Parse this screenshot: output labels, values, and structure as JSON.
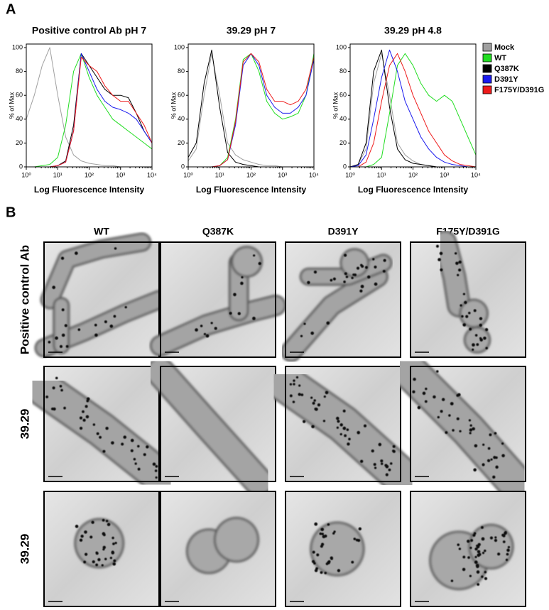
{
  "panel_a": {
    "label": "A"
  },
  "chart_data": [
    {
      "type": "line",
      "title": "Positive control Ab pH 7",
      "xlabel": "Log Fluorescence Intensity",
      "ylabel": "% of Max",
      "log_x": true,
      "xlim": [
        1,
        10000
      ],
      "ylim": [
        0,
        103
      ],
      "xticks": [
        {
          "value": 1,
          "label": "10⁰"
        },
        {
          "value": 10,
          "label": "10¹"
        },
        {
          "value": 100,
          "label": "10²"
        },
        {
          "value": 1000,
          "label": "10³"
        },
        {
          "value": 10000,
          "label": "10⁴"
        }
      ],
      "yticks": [
        0,
        20,
        40,
        60,
        80,
        100
      ],
      "x": [
        1,
        1.8,
        3.2,
        5.6,
        10,
        18,
        32,
        56,
        100,
        178,
        316,
        562,
        1000,
        1778,
        3162,
        5623,
        10000
      ],
      "series": [
        {
          "color": "#a0a0a0",
          "values": [
            40,
            60,
            85,
            100,
            60,
            25,
            10,
            5,
            3,
            2,
            1,
            1,
            0,
            0,
            0,
            0,
            0
          ]
        },
        {
          "color": "#22dd22",
          "values": [
            0,
            0,
            1,
            2,
            8,
            35,
            80,
            95,
            75,
            60,
            50,
            40,
            35,
            30,
            25,
            20,
            15
          ]
        },
        {
          "color": "#000000",
          "values": [
            0,
            0,
            0,
            0,
            1,
            5,
            35,
            95,
            85,
            75,
            65,
            60,
            60,
            58,
            45,
            30,
            20
          ]
        },
        {
          "color": "#1a1aee",
          "values": [
            0,
            0,
            0,
            0,
            1,
            4,
            30,
            95,
            80,
            65,
            55,
            50,
            48,
            45,
            40,
            30,
            20
          ]
        },
        {
          "color": "#ee1a1a",
          "values": [
            0,
            0,
            0,
            0,
            1,
            4,
            30,
            92,
            85,
            80,
            68,
            60,
            55,
            55,
            45,
            35,
            20
          ]
        }
      ]
    },
    {
      "type": "line",
      "title": "39.29 pH 7",
      "xlabel": "Log Fluorescence Intensity",
      "ylabel": "% of Max",
      "log_x": true,
      "xlim": [
        1,
        10000
      ],
      "ylim": [
        0,
        103
      ],
      "xticks": [
        {
          "value": 1,
          "label": "10⁰"
        },
        {
          "value": 10,
          "label": "10¹"
        },
        {
          "value": 100,
          "label": "10²"
        },
        {
          "value": 1000,
          "label": "10³"
        },
        {
          "value": 10000,
          "label": "10⁴"
        }
      ],
      "yticks": [
        0,
        20,
        40,
        60,
        80,
        100
      ],
      "x": [
        1,
        1.8,
        3.2,
        5.6,
        10,
        18,
        32,
        56,
        100,
        178,
        316,
        562,
        1000,
        1778,
        3162,
        5623,
        10000
      ],
      "series": [
        {
          "color": "#a0a0a0",
          "values": [
            5,
            15,
            60,
            95,
            60,
            20,
            10,
            6,
            4,
            2,
            1,
            1,
            0,
            0,
            0,
            0,
            0
          ]
        },
        {
          "color": "#22dd22",
          "values": [
            0,
            0,
            0,
            0,
            1,
            8,
            40,
            90,
            95,
            80,
            55,
            45,
            40,
            42,
            45,
            60,
            95
          ]
        },
        {
          "color": "#000000",
          "values": [
            8,
            20,
            70,
            98,
            50,
            12,
            4,
            2,
            1,
            0,
            0,
            0,
            0,
            0,
            0,
            0,
            0
          ]
        },
        {
          "color": "#1a1aee",
          "values": [
            0,
            0,
            0,
            0,
            1,
            6,
            35,
            85,
            95,
            85,
            60,
            50,
            45,
            45,
            50,
            60,
            90
          ]
        },
        {
          "color": "#ee1a1a",
          "values": [
            0,
            0,
            0,
            0,
            1,
            6,
            38,
            88,
            95,
            88,
            65,
            55,
            55,
            52,
            55,
            65,
            92
          ]
        }
      ]
    },
    {
      "type": "line",
      "title": "39.29 pH 4.8",
      "xlabel": "Log Fluorescence Intensity",
      "ylabel": "% of Max",
      "log_x": true,
      "xlim": [
        1,
        10000
      ],
      "ylim": [
        0,
        103
      ],
      "legend": "right",
      "xticks": [
        {
          "value": 1,
          "label": "10⁰"
        },
        {
          "value": 10,
          "label": "10¹"
        },
        {
          "value": 100,
          "label": "10²"
        },
        {
          "value": 1000,
          "label": "10³"
        },
        {
          "value": 10000,
          "label": "10⁴"
        }
      ],
      "yticks": [
        0,
        20,
        40,
        60,
        80,
        100
      ],
      "x": [
        1,
        1.8,
        3.2,
        5.6,
        10,
        18,
        32,
        56,
        100,
        178,
        316,
        562,
        1000,
        1778,
        3162,
        5623,
        10000
      ],
      "series": [
        {
          "name": "Mock",
          "color": "#a0a0a0",
          "values": [
            0,
            2,
            15,
            70,
            95,
            60,
            20,
            10,
            5,
            2,
            1,
            0,
            0,
            0,
            0,
            0,
            0
          ]
        },
        {
          "name": "WT",
          "color": "#22dd22",
          "values": [
            0,
            0,
            0,
            2,
            8,
            45,
            85,
            95,
            85,
            70,
            60,
            55,
            60,
            55,
            40,
            25,
            10
          ]
        },
        {
          "name": "Q387K",
          "color": "#000000",
          "values": [
            0,
            2,
            20,
            80,
            98,
            50,
            15,
            6,
            3,
            2,
            1,
            0,
            0,
            0,
            0,
            0,
            0
          ]
        },
        {
          "name": "D391Y",
          "color": "#1a1aee",
          "values": [
            0,
            1,
            10,
            40,
            75,
            98,
            80,
            55,
            40,
            25,
            15,
            8,
            4,
            2,
            1,
            0,
            0
          ]
        },
        {
          "name": "F175Y/D391G",
          "color": "#ee1a1a",
          "values": [
            0,
            0,
            4,
            20,
            55,
            85,
            95,
            80,
            60,
            45,
            30,
            20,
            10,
            5,
            2,
            1,
            0
          ]
        }
      ]
    }
  ],
  "panel_b": {
    "label": "B",
    "columns": [
      "WT",
      "Q387K",
      "D391Y",
      "F175Y/D391G"
    ],
    "rows": [
      "Positive control Ab",
      "39.29",
      "39.29"
    ]
  }
}
